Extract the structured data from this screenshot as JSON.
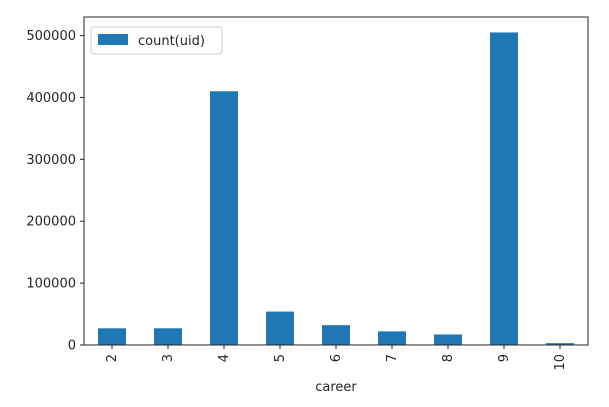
{
  "chart_data": {
    "type": "bar",
    "categories": [
      "2",
      "3",
      "4",
      "5",
      "6",
      "7",
      "8",
      "9",
      "10"
    ],
    "series": [
      {
        "name": "count(uid)",
        "values": [
          27000,
          27000,
          410000,
          54000,
          32000,
          22000,
          17000,
          505000,
          3000
        ],
        "color": "#1f77b4"
      }
    ],
    "xlabel": "career",
    "ylabel": "",
    "ylim": [
      0,
      530000
    ],
    "yticks": [
      0,
      100000,
      200000,
      300000,
      400000,
      500000
    ],
    "legend_position": "top-left",
    "grid": false
  }
}
